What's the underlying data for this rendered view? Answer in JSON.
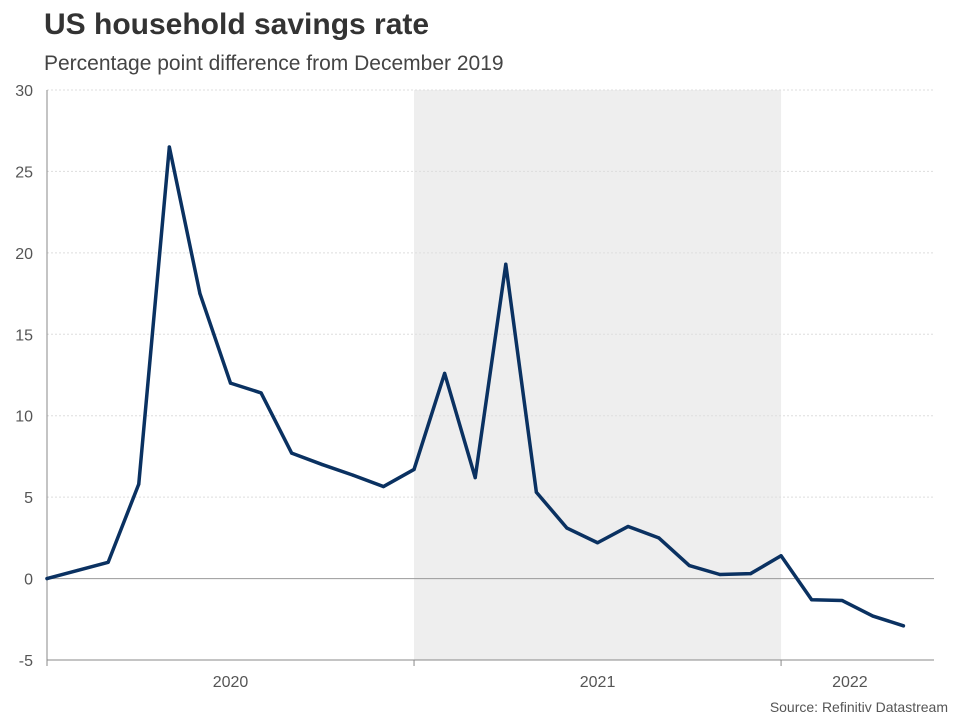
{
  "chart_data": {
    "type": "line",
    "title": "US household savings rate",
    "subtitle": "Percentage point difference from December 2019",
    "source": "Source: Refinitiv Datastream",
    "xlabel": "",
    "ylabel": "",
    "ylim": [
      -5,
      30
    ],
    "yticks": [
      -5,
      0,
      5,
      10,
      15,
      20,
      25,
      30
    ],
    "x_start": "2019-12",
    "x_end": "2022-05",
    "x_period_labels": [
      {
        "label": "2020",
        "from": 0,
        "to": 12
      },
      {
        "label": "2021",
        "from": 12,
        "to": 24
      },
      {
        "label": "2022",
        "from": 24,
        "to": 29
      }
    ],
    "shaded_period": {
      "from": 12,
      "to": 24,
      "color": "#eeeeee"
    },
    "grid": true,
    "series": [
      {
        "name": "US household savings rate",
        "color": "#0a3161",
        "x": [
          "2019-12",
          "2020-01",
          "2020-02",
          "2020-03",
          "2020-04",
          "2020-05",
          "2020-06",
          "2020-07",
          "2020-08",
          "2020-09",
          "2020-10",
          "2020-11",
          "2020-12",
          "2021-01",
          "2021-02",
          "2021-03",
          "2021-04",
          "2021-05",
          "2021-06",
          "2021-07",
          "2021-08",
          "2021-09",
          "2021-10",
          "2021-11",
          "2021-12",
          "2022-01",
          "2022-02",
          "2022-03",
          "2022-04"
        ],
        "values": [
          0,
          0.5,
          1.0,
          5.8,
          26.5,
          17.5,
          12.0,
          11.4,
          7.7,
          7.0,
          6.35,
          5.65,
          6.7,
          12.6,
          6.2,
          19.3,
          5.3,
          3.1,
          2.2,
          3.2,
          2.5,
          0.8,
          0.25,
          0.3,
          1.4,
          -1.3,
          -1.35,
          -2.3,
          -2.9
        ]
      }
    ]
  },
  "colors": {
    "line": "#0a3161",
    "shade": "#eeeeee",
    "grid": "#dddddd",
    "axis": "#888888",
    "zero_line": "#999999"
  }
}
